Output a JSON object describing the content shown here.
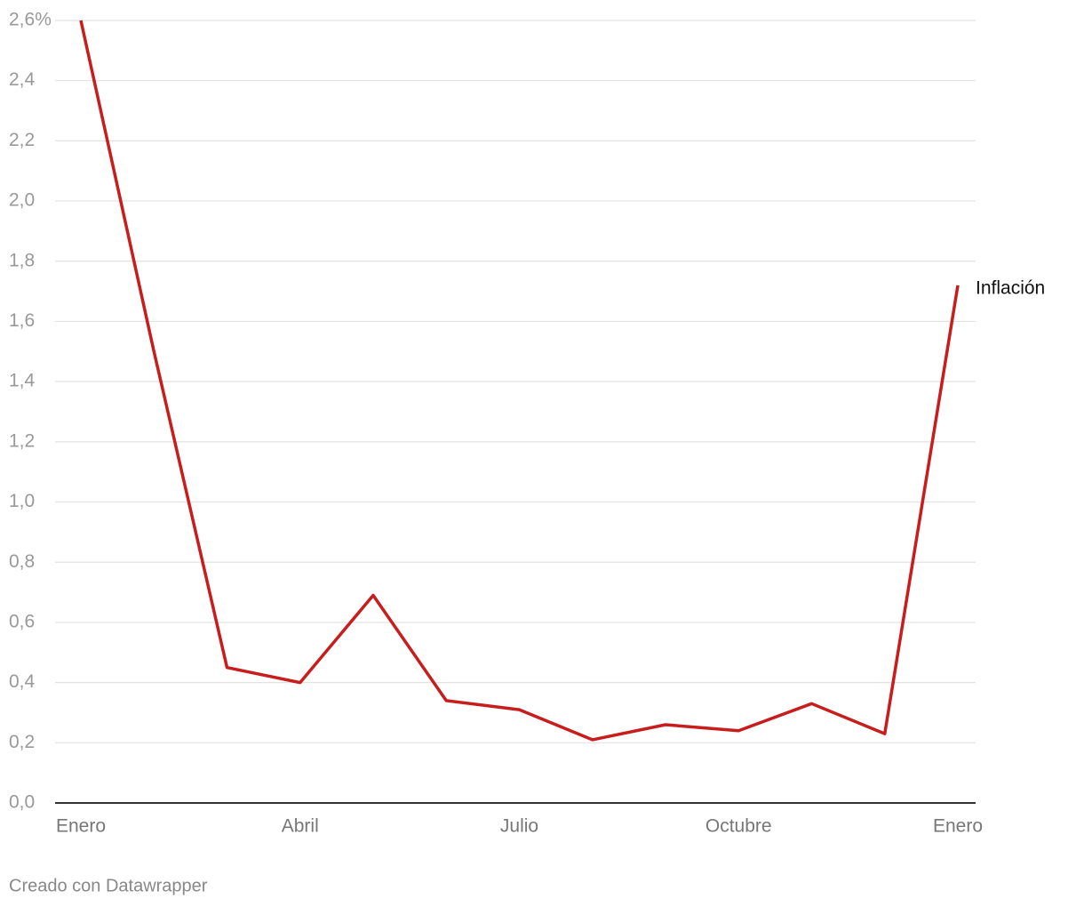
{
  "chart_data": {
    "type": "line",
    "categories": [
      "Enero",
      null,
      null,
      "Abril",
      null,
      null,
      "Julio",
      null,
      null,
      "Octubre",
      null,
      null,
      "Enero"
    ],
    "series": [
      {
        "name": "Inflación",
        "color": "#c71e1d",
        "values": [
          2.6,
          1.5,
          0.45,
          0.4,
          0.69,
          0.34,
          0.31,
          0.21,
          0.26,
          0.24,
          0.33,
          0.23,
          1.72
        ]
      }
    ],
    "ylim": [
      0,
      2.6
    ],
    "yticks": [
      {
        "value": 0,
        "label": "0,0"
      },
      {
        "value": 0.2,
        "label": "0,2"
      },
      {
        "value": 0.4,
        "label": "0,4"
      },
      {
        "value": 0.6,
        "label": "0,6"
      },
      {
        "value": 0.8,
        "label": "0,8"
      },
      {
        "value": 1.0,
        "label": "1,0"
      },
      {
        "value": 1.2,
        "label": "1,2"
      },
      {
        "value": 1.4,
        "label": "1,4"
      },
      {
        "value": 1.6,
        "label": "1,6"
      },
      {
        "value": 1.8,
        "label": "1,8"
      },
      {
        "value": 2.0,
        "label": "2,0"
      },
      {
        "value": 2.2,
        "label": "2,2"
      },
      {
        "value": 2.4,
        "label": "2,4"
      },
      {
        "value": 2.6,
        "label": "2,6%"
      }
    ],
    "grid": true
  },
  "credit": "Creado con Datawrapper"
}
